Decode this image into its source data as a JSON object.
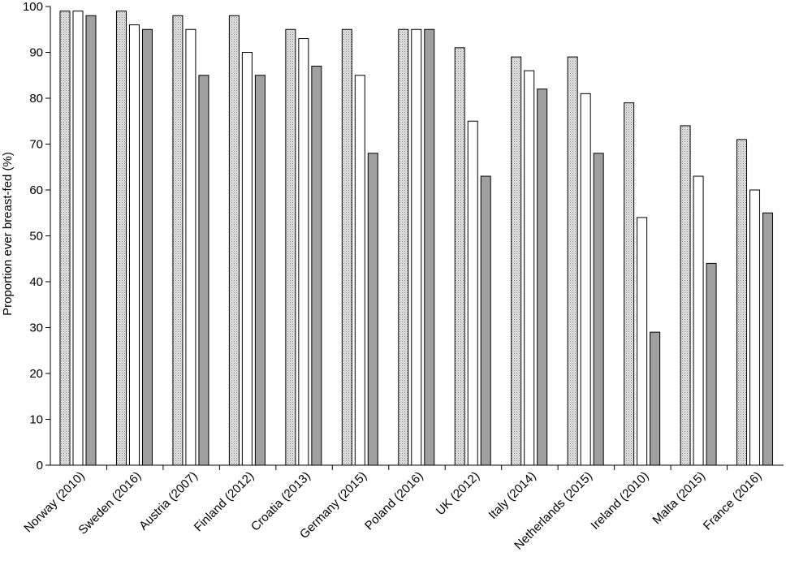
{
  "chart_data": {
    "type": "bar",
    "title": "",
    "xlabel": "",
    "ylabel": "Proportion ever breast-fed (%)",
    "ylim": [
      0,
      100
    ],
    "yticks": [
      0,
      10,
      20,
      30,
      40,
      50,
      60,
      70,
      80,
      90,
      100
    ],
    "grid": false,
    "legend": "none",
    "categories": [
      "Norway (2010)",
      "Sweden (2016)",
      "Austria (2007)",
      "Finland (2012)",
      "Croatia (2013)",
      "Germany (2015)",
      "Poland (2016)",
      "UK (2012)",
      "Italy (2014)",
      "Netherlands (2015)",
      "Ireland (2010)",
      "Malta (2015)",
      "France (2016)"
    ],
    "series": [
      {
        "fill": "dotted-light-grey",
        "color": "#cfcfcf",
        "values": [
          99,
          99,
          98,
          98,
          95,
          95,
          95,
          91,
          89,
          89,
          79,
          74,
          71
        ]
      },
      {
        "fill": "white",
        "color": "#ffffff",
        "values": [
          99,
          96,
          95,
          90,
          93,
          85,
          95,
          75,
          86,
          81,
          54,
          63,
          60
        ]
      },
      {
        "fill": "solid-grey",
        "color": "#a0a0a0",
        "values": [
          98,
          95,
          85,
          85,
          87,
          68,
          95,
          63,
          82,
          68,
          29,
          44,
          55
        ]
      }
    ]
  }
}
